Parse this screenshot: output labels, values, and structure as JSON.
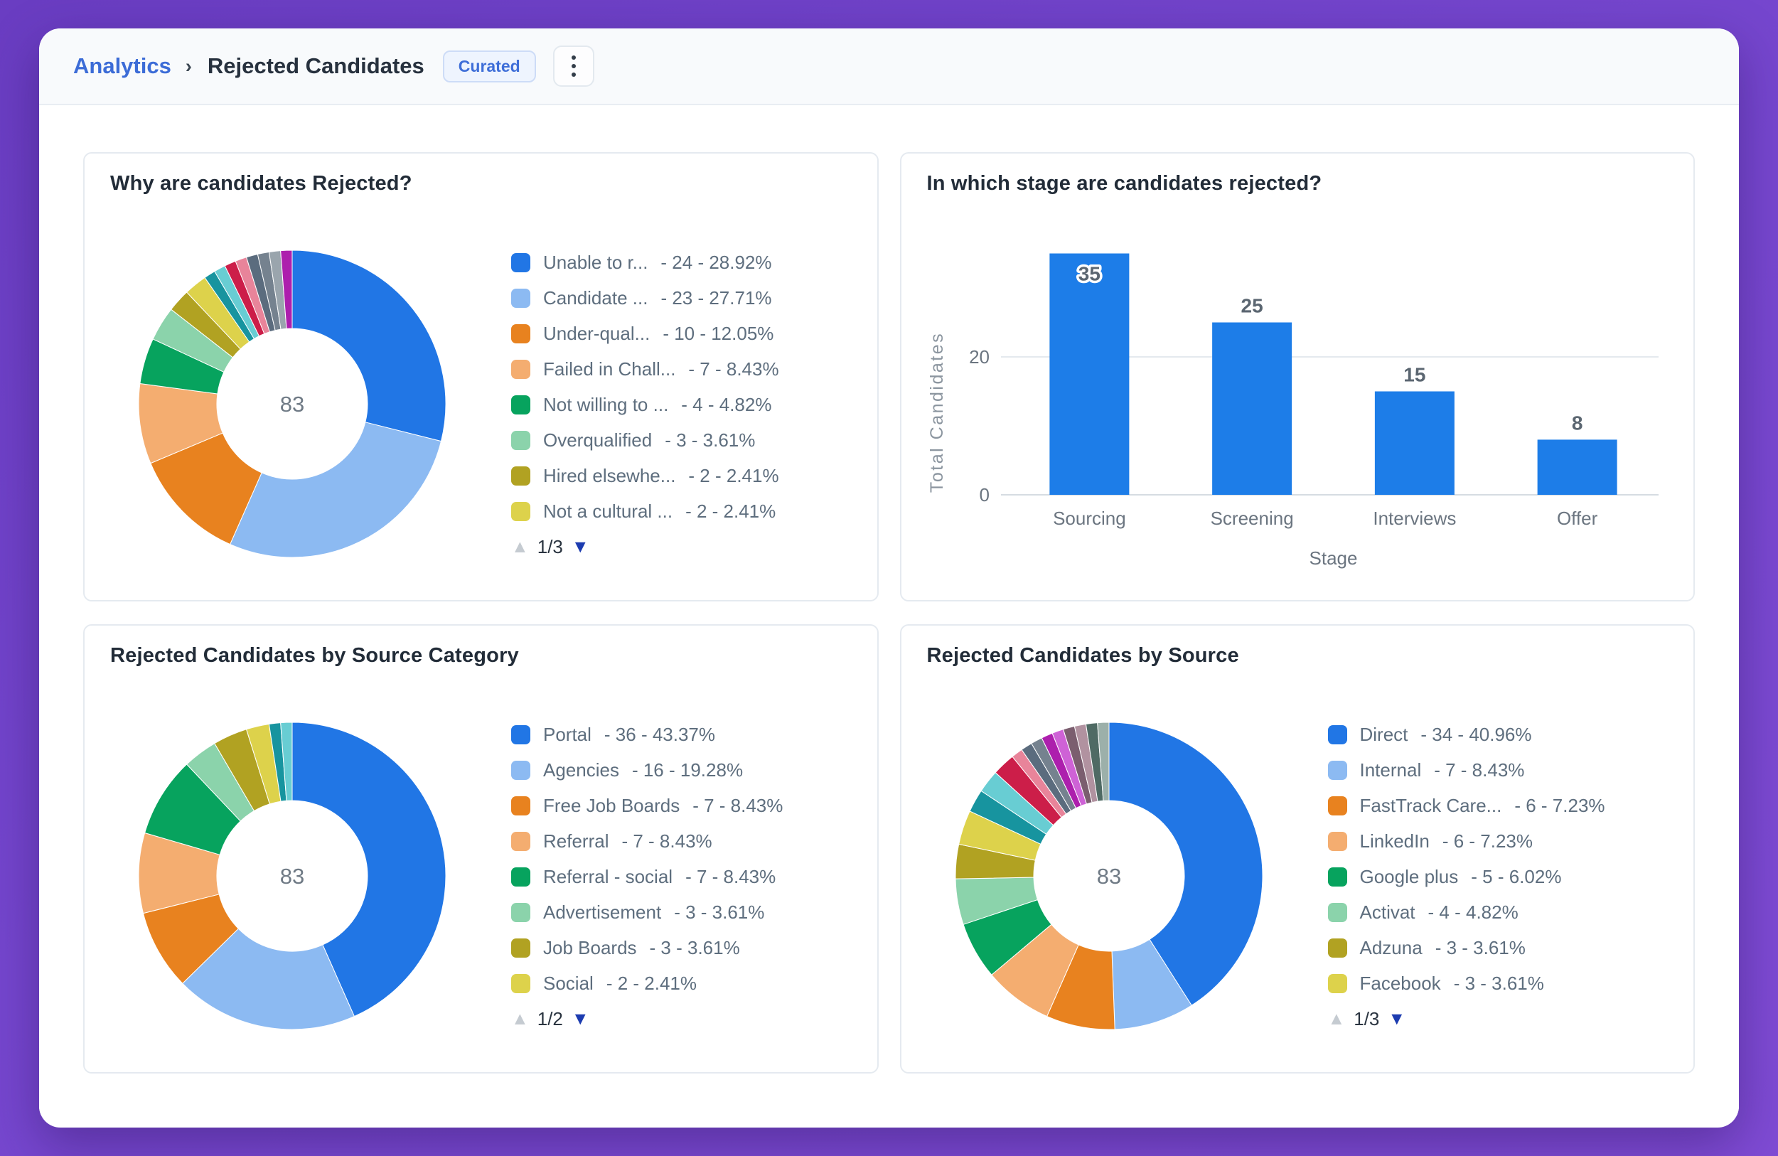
{
  "header": {
    "breadcrumb_root": "Analytics",
    "breadcrumb_separator": "›",
    "title": "Rejected Candidates",
    "badge": "Curated"
  },
  "legend_pager": {
    "up_icon": "▲",
    "down_icon": "▼"
  },
  "theme": {
    "background_purple": "#7345cc",
    "accent_blue": "#3c6cd7",
    "bar_blue": "#1d7de8",
    "card_border": "#e5eaf0"
  },
  "chart_data": [
    {
      "type": "donut",
      "title": "Why are candidates Rejected?",
      "center_label": "83",
      "total": 83,
      "pagination": "1/3",
      "legend": [
        {
          "label": "Unable to r...",
          "value": 24,
          "pct": "28.92%",
          "color": "#2176e5"
        },
        {
          "label": "Candidate ...",
          "value": 23,
          "pct": "27.71%",
          "color": "#8cbaf2"
        },
        {
          "label": "Under-qual...",
          "value": 10,
          "pct": "12.05%",
          "color": "#e8821f"
        },
        {
          "label": "Failed in Chall...",
          "value": 7,
          "pct": "8.43%",
          "color": "#f4ad70"
        },
        {
          "label": "Not willing to ...",
          "value": 4,
          "pct": "4.82%",
          "color": "#07a35e"
        },
        {
          "label": "Overqualified",
          "value": 3,
          "pct": "3.61%",
          "color": "#8bd3ab"
        },
        {
          "label": "Hired elsewhe...",
          "value": 2,
          "pct": "2.41%",
          "color": "#b1a222"
        },
        {
          "label": "Not a cultural ...",
          "value": 2,
          "pct": "2.41%",
          "color": "#ddd24b"
        }
      ],
      "slices": [
        {
          "v": 24,
          "color": "#2176e5"
        },
        {
          "v": 23,
          "color": "#8cbaf2"
        },
        {
          "v": 10,
          "color": "#e8821f"
        },
        {
          "v": 7,
          "color": "#f4ad70"
        },
        {
          "v": 4,
          "color": "#07a35e"
        },
        {
          "v": 3,
          "color": "#8bd3ab"
        },
        {
          "v": 2,
          "color": "#b1a222"
        },
        {
          "v": 2,
          "color": "#ddd24b"
        },
        {
          "v": 1,
          "color": "#17949f"
        },
        {
          "v": 1,
          "color": "#68cdd3"
        },
        {
          "v": 1,
          "color": "#cc1e49"
        },
        {
          "v": 1,
          "color": "#e8849a"
        },
        {
          "v": 1,
          "color": "#5b6c7e"
        },
        {
          "v": 1,
          "color": "#75828f"
        },
        {
          "v": 1,
          "color": "#9aa5ad"
        },
        {
          "v": 1,
          "color": "#ad1fad"
        }
      ]
    },
    {
      "type": "bar",
      "title": "In which stage are candidates rejected?",
      "categories": [
        "Sourcing",
        "Screening",
        "Interviews",
        "Offer"
      ],
      "values": [
        35,
        25,
        15,
        8
      ],
      "xlabel": "Stage",
      "ylabel": "Total Candidates",
      "yticks": [
        0,
        20
      ],
      "ylim": [
        0,
        35
      ],
      "bar_color": "#1d7de8"
    },
    {
      "type": "donut",
      "title": "Rejected Candidates by Source Category",
      "center_label": "83",
      "total": 83,
      "pagination": "1/2",
      "legend": [
        {
          "label": "Portal",
          "value": 36,
          "pct": "43.37%",
          "color": "#2176e5"
        },
        {
          "label": "Agencies",
          "value": 16,
          "pct": "19.28%",
          "color": "#8cbaf2"
        },
        {
          "label": "Free Job Boards",
          "value": 7,
          "pct": "8.43%",
          "color": "#e8821f"
        },
        {
          "label": "Referral",
          "value": 7,
          "pct": "8.43%",
          "color": "#f4ad70"
        },
        {
          "label": "Referral - social",
          "value": 7,
          "pct": "8.43%",
          "color": "#07a35e"
        },
        {
          "label": "Advertisement",
          "value": 3,
          "pct": "3.61%",
          "color": "#8bd3ab"
        },
        {
          "label": "Job Boards",
          "value": 3,
          "pct": "3.61%",
          "color": "#b1a222"
        },
        {
          "label": "Social",
          "value": 2,
          "pct": "2.41%",
          "color": "#ddd24b"
        }
      ],
      "slices": [
        {
          "v": 36,
          "color": "#2176e5"
        },
        {
          "v": 16,
          "color": "#8cbaf2"
        },
        {
          "v": 7,
          "color": "#e8821f"
        },
        {
          "v": 7,
          "color": "#f4ad70"
        },
        {
          "v": 7,
          "color": "#07a35e"
        },
        {
          "v": 3,
          "color": "#8bd3ab"
        },
        {
          "v": 3,
          "color": "#b1a222"
        },
        {
          "v": 2,
          "color": "#ddd24b"
        },
        {
          "v": 1,
          "color": "#17949f"
        },
        {
          "v": 1,
          "color": "#68cdd3"
        }
      ]
    },
    {
      "type": "donut",
      "title": "Rejected Candidates by Source",
      "center_label": "83",
      "total": 83,
      "pagination": "1/3",
      "legend": [
        {
          "label": "Direct",
          "value": 34,
          "pct": "40.96%",
          "color": "#2176e5"
        },
        {
          "label": "Internal",
          "value": 7,
          "pct": "8.43%",
          "color": "#8cbaf2"
        },
        {
          "label": "FastTrack Care...",
          "value": 6,
          "pct": "7.23%",
          "color": "#e8821f"
        },
        {
          "label": "LinkedIn",
          "value": 6,
          "pct": "7.23%",
          "color": "#f4ad70"
        },
        {
          "label": "Google plus",
          "value": 5,
          "pct": "6.02%",
          "color": "#07a35e"
        },
        {
          "label": "Activat",
          "value": 4,
          "pct": "4.82%",
          "color": "#8bd3ab"
        },
        {
          "label": "Adzuna",
          "value": 3,
          "pct": "3.61%",
          "color": "#b1a222"
        },
        {
          "label": "Facebook",
          "value": 3,
          "pct": "3.61%",
          "color": "#ddd24b"
        }
      ],
      "slices": [
        {
          "v": 34,
          "color": "#2176e5"
        },
        {
          "v": 7,
          "color": "#8cbaf2"
        },
        {
          "v": 6,
          "color": "#e8821f"
        },
        {
          "v": 6,
          "color": "#f4ad70"
        },
        {
          "v": 5,
          "color": "#07a35e"
        },
        {
          "v": 4,
          "color": "#8bd3ab"
        },
        {
          "v": 3,
          "color": "#b1a222"
        },
        {
          "v": 3,
          "color": "#ddd24b"
        },
        {
          "v": 2,
          "color": "#17949f"
        },
        {
          "v": 2,
          "color": "#68cdd3"
        },
        {
          "v": 2,
          "color": "#cc1e49"
        },
        {
          "v": 1,
          "color": "#e8849a"
        },
        {
          "v": 1,
          "color": "#5b6c7e"
        },
        {
          "v": 1,
          "color": "#75828f"
        },
        {
          "v": 1,
          "color": "#ad1fad"
        },
        {
          "v": 1,
          "color": "#ce62d6"
        },
        {
          "v": 1,
          "color": "#7b5e6f"
        },
        {
          "v": 1,
          "color": "#b192a0"
        },
        {
          "v": 1,
          "color": "#4f6a64"
        },
        {
          "v": 1,
          "color": "#9cb0aa"
        }
      ]
    }
  ]
}
